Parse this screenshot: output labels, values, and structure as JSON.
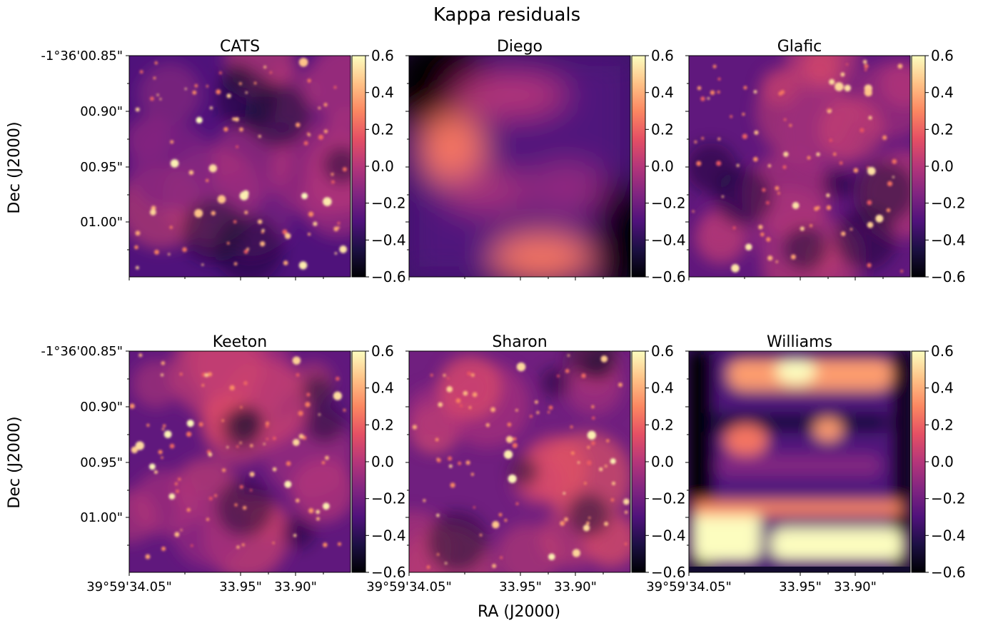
{
  "figure": {
    "suptitle": "Kappa residuals",
    "xlabel": "RA (J2000)",
    "ylabel": "Dec (J2000)"
  },
  "chart_data": {
    "type": "heatmap",
    "title": "Kappa residuals",
    "xlabel": "RA (J2000)",
    "ylabel": "Dec (J2000)",
    "colormap": "magma",
    "clim": [
      -0.6,
      0.6
    ],
    "colorbar_ticks": [
      {
        "value": 0.6,
        "label": "0.6"
      },
      {
        "value": 0.4,
        "label": "0.4"
      },
      {
        "value": 0.2,
        "label": "0.2"
      },
      {
        "value": 0.0,
        "label": "0.0"
      },
      {
        "value": -0.2,
        "label": "−0.2"
      },
      {
        "value": -0.4,
        "label": "−0.4"
      },
      {
        "value": -0.6,
        "label": "−0.6"
      }
    ],
    "dec_ticks": [
      "-1°36'00.85\"",
      "00.90\"",
      "00.95\"",
      "01.00\""
    ],
    "ra_ticks": [
      "39°59'34.05\"",
      "33.95\"",
      "33.90\""
    ],
    "panels": [
      {
        "title": "CATS",
        "structure": "many-halos",
        "background_level": -0.3
      },
      {
        "title": "Diego",
        "structure": "smooth",
        "background_level": -0.35
      },
      {
        "title": "Glafic",
        "structure": "many-halos",
        "background_level": -0.25
      },
      {
        "title": "Keeton",
        "structure": "many-halos",
        "background_level": -0.25
      },
      {
        "title": "Sharon",
        "structure": "many-halos",
        "background_level": -0.2
      },
      {
        "title": "Williams",
        "structure": "grid-blobs",
        "background_level": -0.35
      }
    ]
  },
  "colors": {
    "cmap_stops": [
      "#000004",
      "#1c1044",
      "#4f127b",
      "#812581",
      "#b5367a",
      "#e55064",
      "#fb8761",
      "#fec287",
      "#fcfdbf"
    ]
  }
}
